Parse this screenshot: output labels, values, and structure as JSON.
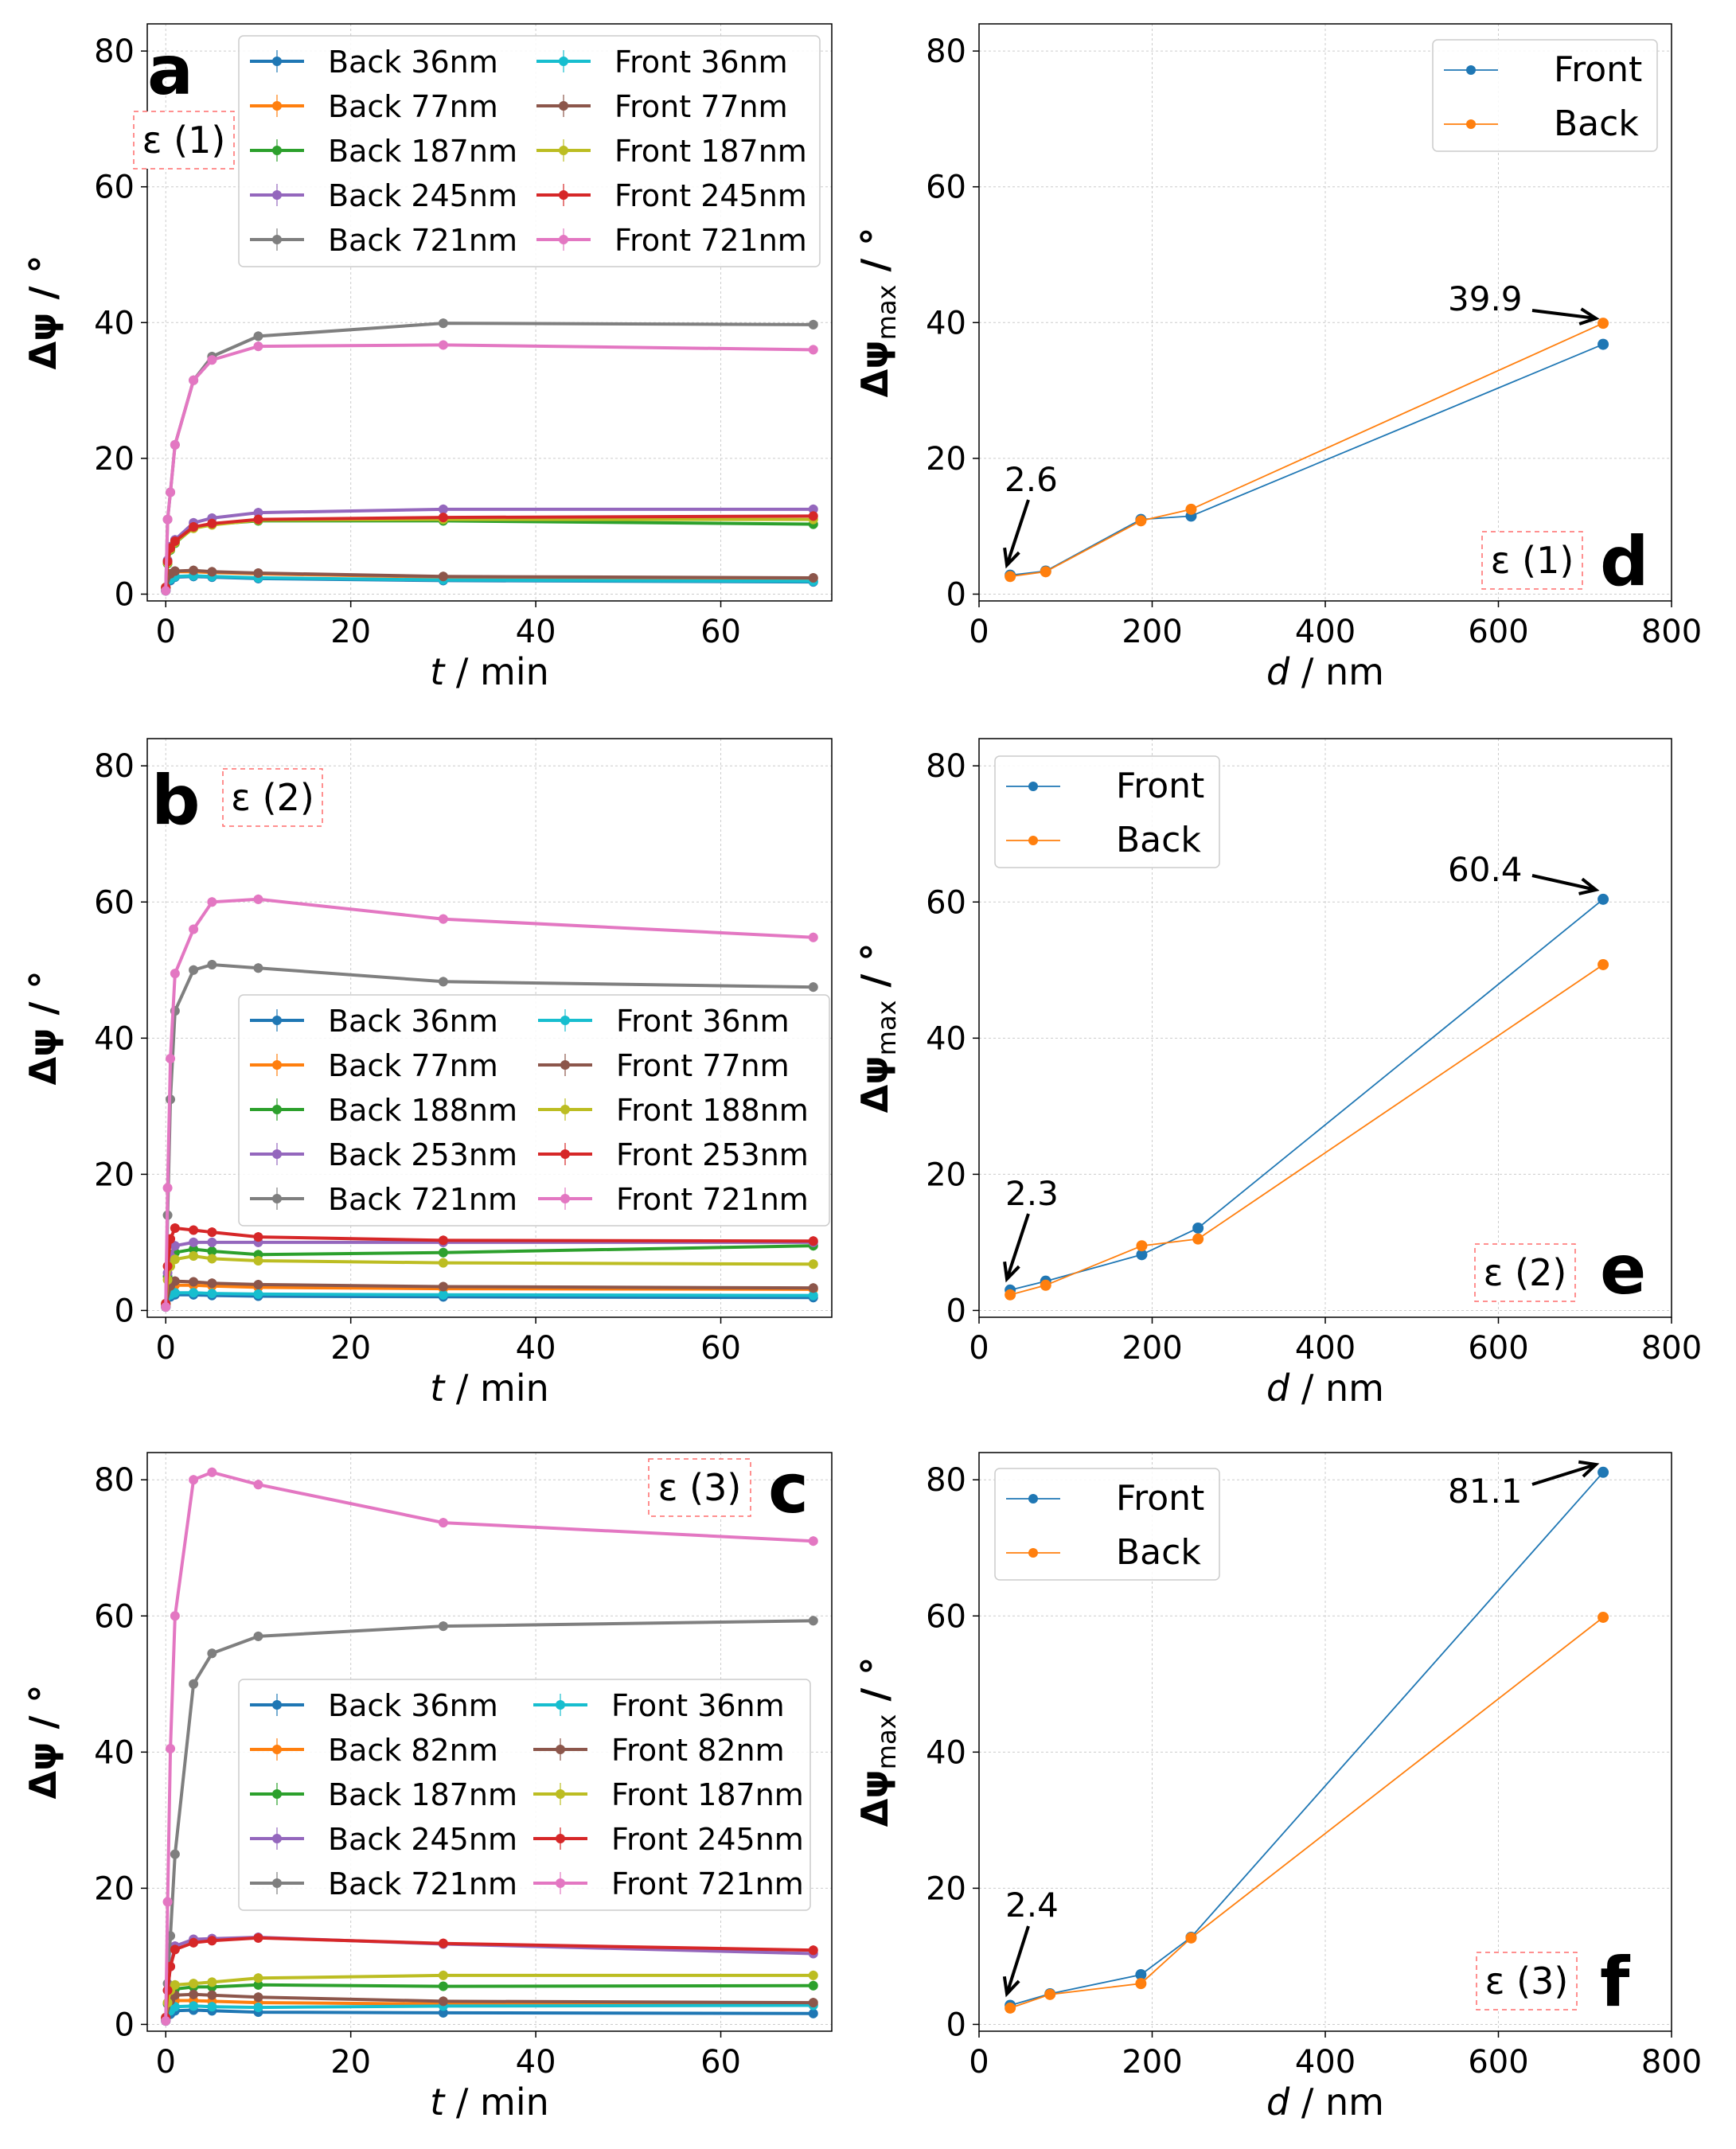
{
  "chart_data": [
    {
      "id": "a",
      "type": "line",
      "panel_letter": "a",
      "tag": "ε (1)",
      "xlabel_italic": "t",
      "xlabel_rest": " / min",
      "ylabel": "Δψ / °",
      "xlim": [
        -2,
        72
      ],
      "ylim": [
        -1,
        84
      ],
      "xticks": [
        0,
        20,
        40,
        60
      ],
      "yticks": [
        0,
        20,
        40,
        60,
        80
      ],
      "legend_position": "top-right",
      "series": [
        {
          "name": "Back 36nm",
          "color": "#1f77b4",
          "x": [
            0,
            0.5,
            1,
            3,
            5,
            10,
            30,
            70
          ],
          "y": [
            0.5,
            2.0,
            2.5,
            2.6,
            2.5,
            2.3,
            2.0,
            1.8
          ]
        },
        {
          "name": "Back 77nm",
          "color": "#ff7f0e",
          "x": [
            0,
            0.5,
            1,
            3,
            5,
            10,
            30,
            70
          ],
          "y": [
            0.8,
            2.8,
            3.3,
            3.3,
            3.2,
            3.0,
            2.5,
            2.3
          ]
        },
        {
          "name": "Back 187nm",
          "color": "#2ca02c",
          "x": [
            0,
            0.2,
            0.5,
            1,
            3,
            5,
            10,
            30,
            70
          ],
          "y": [
            1.0,
            4.5,
            6.5,
            7.5,
            9.8,
            10.3,
            10.8,
            10.8,
            10.3
          ]
        },
        {
          "name": "Back 245nm",
          "color": "#9467bd",
          "x": [
            0,
            0.2,
            0.5,
            1,
            3,
            5,
            10,
            30,
            70
          ],
          "y": [
            1.0,
            5.0,
            7.0,
            8.0,
            10.5,
            11.2,
            12.0,
            12.5,
            12.5
          ]
        },
        {
          "name": "Back 721nm",
          "color": "#7f7f7f",
          "x": [
            0,
            0.2,
            0.5,
            1,
            3,
            5,
            10,
            30,
            70
          ],
          "y": [
            0.5,
            11,
            15,
            22,
            31.5,
            35,
            38,
            39.9,
            39.7
          ]
        },
        {
          "name": "Front 36nm",
          "color": "#17becf",
          "x": [
            0,
            0.5,
            1,
            3,
            5,
            10,
            30,
            70
          ],
          "y": [
            0.5,
            2.2,
            2.6,
            2.7,
            2.6,
            2.4,
            2.1,
            1.9
          ]
        },
        {
          "name": "Front 77nm",
          "color": "#8c564b",
          "x": [
            0,
            0.5,
            1,
            3,
            5,
            10,
            30,
            70
          ],
          "y": [
            0.8,
            3.0,
            3.4,
            3.5,
            3.3,
            3.1,
            2.6,
            2.4
          ]
        },
        {
          "name": "Front 187nm",
          "color": "#bcbd22",
          "x": [
            0,
            0.2,
            0.5,
            1,
            3,
            5,
            10,
            30,
            70
          ],
          "y": [
            1.0,
            4.6,
            6.6,
            7.6,
            9.7,
            10.2,
            10.9,
            11.0,
            11.0
          ]
        },
        {
          "name": "Front 245nm",
          "color": "#d62728",
          "x": [
            0,
            0.2,
            0.5,
            1,
            3,
            5,
            10,
            30,
            70
          ],
          "y": [
            1.0,
            4.8,
            6.8,
            7.8,
            9.9,
            10.4,
            11.0,
            11.3,
            11.5
          ]
        },
        {
          "name": "Front 721nm",
          "color": "#e377c2",
          "x": [
            0,
            0.2,
            0.5,
            1,
            3,
            5,
            10,
            30,
            70
          ],
          "y": [
            0.5,
            11,
            15,
            22,
            31.5,
            34.5,
            36.5,
            36.7,
            36.0
          ]
        }
      ]
    },
    {
      "id": "b",
      "type": "line",
      "panel_letter": "b",
      "tag": "ε (2)",
      "xlabel_italic": "t",
      "xlabel_rest": " / min",
      "ylabel": "Δψ / °",
      "xlim": [
        -2,
        72
      ],
      "ylim": [
        -1,
        84
      ],
      "xticks": [
        0,
        20,
        40,
        60
      ],
      "yticks": [
        0,
        20,
        40,
        60,
        80
      ],
      "legend_position": "center-right",
      "series": [
        {
          "name": "Back 36nm",
          "color": "#1f77b4",
          "x": [
            0,
            0.5,
            1,
            3,
            5,
            10,
            30,
            70
          ],
          "y": [
            0.5,
            2.0,
            2.3,
            2.3,
            2.2,
            2.1,
            2.0,
            1.9
          ]
        },
        {
          "name": "Back 77nm",
          "color": "#ff7f0e",
          "x": [
            0,
            0.5,
            1,
            3,
            5,
            10,
            30,
            70
          ],
          "y": [
            0.8,
            3.0,
            3.7,
            3.7,
            3.6,
            3.4,
            3.2,
            3.1
          ]
        },
        {
          "name": "Back 188nm",
          "color": "#2ca02c",
          "x": [
            0,
            0.2,
            0.5,
            1,
            3,
            5,
            10,
            30,
            70
          ],
          "y": [
            1.0,
            5.0,
            7.5,
            8.5,
            9.0,
            8.7,
            8.2,
            8.5,
            9.5
          ]
        },
        {
          "name": "Back 253nm",
          "color": "#9467bd",
          "x": [
            0,
            0.2,
            0.5,
            1,
            3,
            5,
            10,
            30,
            70
          ],
          "y": [
            1.0,
            5.5,
            8.0,
            9.5,
            10.0,
            10.0,
            10.0,
            10.0,
            10.0
          ]
        },
        {
          "name": "Back 721nm",
          "color": "#7f7f7f",
          "x": [
            0,
            0.2,
            0.5,
            1,
            3,
            5,
            10,
            30,
            70
          ],
          "y": [
            0.5,
            14,
            31,
            44,
            50,
            50.8,
            50.3,
            48.3,
            47.5
          ]
        },
        {
          "name": "Front 36nm",
          "color": "#17becf",
          "x": [
            0,
            0.5,
            1,
            3,
            5,
            10,
            30,
            70
          ],
          "y": [
            0.5,
            2.3,
            2.6,
            2.6,
            2.5,
            2.4,
            2.3,
            2.2
          ]
        },
        {
          "name": "Front 77nm",
          "color": "#8c564b",
          "x": [
            0,
            0.5,
            1,
            3,
            5,
            10,
            30,
            70
          ],
          "y": [
            0.8,
            3.6,
            4.3,
            4.2,
            4.0,
            3.8,
            3.5,
            3.3
          ]
        },
        {
          "name": "Front 188nm",
          "color": "#bcbd22",
          "x": [
            0,
            0.2,
            0.5,
            1,
            3,
            5,
            10,
            30,
            70
          ],
          "y": [
            1.0,
            4.5,
            6.5,
            7.5,
            8.0,
            7.6,
            7.3,
            7.0,
            6.8
          ]
        },
        {
          "name": "Front 253nm",
          "color": "#d62728",
          "x": [
            0,
            0.2,
            0.5,
            1,
            3,
            5,
            10,
            30,
            70
          ],
          "y": [
            1.0,
            6.5,
            10.5,
            12.1,
            11.8,
            11.5,
            10.8,
            10.3,
            10.2
          ]
        },
        {
          "name": "Front 721nm",
          "color": "#e377c2",
          "x": [
            0,
            0.2,
            0.5,
            1,
            3,
            5,
            10,
            30,
            70
          ],
          "y": [
            0.5,
            18,
            37,
            49.5,
            56,
            60,
            60.4,
            57.5,
            54.8
          ]
        }
      ]
    },
    {
      "id": "c",
      "type": "line",
      "panel_letter": "c",
      "tag": "ε (3)",
      "xlabel_italic": "t",
      "xlabel_rest": " / min",
      "ylabel": "Δψ / °",
      "xlim": [
        -2,
        72
      ],
      "ylim": [
        -1,
        84
      ],
      "xticks": [
        0,
        20,
        40,
        60
      ],
      "yticks": [
        0,
        20,
        40,
        60,
        80
      ],
      "legend_position": "center-right",
      "series": [
        {
          "name": "Back 36nm",
          "color": "#1f77b4",
          "x": [
            0,
            0.5,
            1,
            3,
            5,
            10,
            30,
            70
          ],
          "y": [
            0.5,
            1.5,
            2.0,
            2.1,
            2.0,
            1.8,
            1.7,
            1.6
          ]
        },
        {
          "name": "Back 82nm",
          "color": "#ff7f0e",
          "x": [
            0,
            0.5,
            1,
            3,
            5,
            10,
            30,
            70
          ],
          "y": [
            0.8,
            3.0,
            3.5,
            3.5,
            3.4,
            3.2,
            3.0,
            2.9
          ]
        },
        {
          "name": "Back 187nm",
          "color": "#2ca02c",
          "x": [
            0,
            0.2,
            0.5,
            1,
            3,
            5,
            10,
            30,
            70
          ],
          "y": [
            1.0,
            3.0,
            4.5,
            5.2,
            5.5,
            5.5,
            5.8,
            5.6,
            5.7
          ]
        },
        {
          "name": "Back 245nm",
          "color": "#9467bd",
          "x": [
            0,
            0.2,
            0.5,
            1,
            3,
            5,
            10,
            30,
            70
          ],
          "y": [
            1.0,
            5.0,
            8.5,
            11.5,
            12.5,
            12.6,
            12.8,
            11.8,
            10.4
          ]
        },
        {
          "name": "Back 721nm",
          "color": "#7f7f7f",
          "x": [
            0,
            0.2,
            0.5,
            1,
            3,
            5,
            10,
            30,
            70
          ],
          "y": [
            0.5,
            6,
            13,
            25,
            50,
            54.5,
            57,
            58.5,
            59.3
          ]
        },
        {
          "name": "Front 36nm",
          "color": "#17becf",
          "x": [
            0,
            0.5,
            1,
            3,
            5,
            10,
            30,
            70
          ],
          "y": [
            0.5,
            2.0,
            2.6,
            2.7,
            2.6,
            2.5,
            2.7,
            2.8
          ]
        },
        {
          "name": "Front 82nm",
          "color": "#8c564b",
          "x": [
            0,
            0.5,
            1,
            3,
            5,
            10,
            30,
            70
          ],
          "y": [
            0.8,
            3.5,
            4.3,
            4.4,
            4.3,
            4.0,
            3.4,
            3.2
          ]
        },
        {
          "name": "Front 187nm",
          "color": "#bcbd22",
          "x": [
            0,
            0.2,
            0.5,
            1,
            3,
            5,
            10,
            30,
            70
          ],
          "y": [
            1.0,
            3.2,
            5.0,
            5.8,
            6.0,
            6.2,
            6.8,
            7.2,
            7.2
          ]
        },
        {
          "name": "Front 245nm",
          "color": "#d62728",
          "x": [
            0,
            0.2,
            0.5,
            1,
            3,
            5,
            10,
            30,
            70
          ],
          "y": [
            1.0,
            5.0,
            8.5,
            11.0,
            12.0,
            12.3,
            12.7,
            11.9,
            10.9
          ]
        },
        {
          "name": "Front 721nm",
          "color": "#e377c2",
          "x": [
            0,
            0.2,
            0.5,
            1,
            3,
            5,
            10,
            30,
            70
          ],
          "y": [
            0.5,
            18,
            40.5,
            60,
            80,
            81.1,
            79.3,
            73.7,
            71.0
          ]
        }
      ]
    },
    {
      "id": "d",
      "type": "line",
      "panel_letter": "d",
      "tag": "ε (1)",
      "xlabel_italic": "d",
      "xlabel_rest": " / nm",
      "ylabel_main": "Δψ",
      "ylabel_sub": "max",
      "ylabel_rest": " / °",
      "xlim": [
        0,
        800
      ],
      "ylim": [
        -1,
        84
      ],
      "xticks": [
        0,
        200,
        400,
        600,
        800
      ],
      "yticks": [
        0,
        20,
        40,
        60,
        80
      ],
      "legend_position": "top-right",
      "series": [
        {
          "name": "Front",
          "color": "#1f77b4",
          "x": [
            36,
            77,
            187,
            245,
            721
          ],
          "y": [
            2.8,
            3.4,
            11.0,
            11.5,
            36.8
          ]
        },
        {
          "name": "Back",
          "color": "#ff7f0e",
          "x": [
            36,
            77,
            187,
            245,
            721
          ],
          "y": [
            2.6,
            3.3,
            10.8,
            12.5,
            39.9
          ]
        }
      ],
      "annotations": [
        {
          "text": "2.6",
          "x": 36,
          "y": 2.6
        },
        {
          "text": "39.9",
          "x": 721,
          "y": 39.9
        }
      ]
    },
    {
      "id": "e",
      "type": "line",
      "panel_letter": "e",
      "tag": "ε (2)",
      "xlabel_italic": "d",
      "xlabel_rest": " / nm",
      "ylabel_main": "Δψ",
      "ylabel_sub": "max",
      "ylabel_rest": " / °",
      "xlim": [
        0,
        800
      ],
      "ylim": [
        -1,
        84
      ],
      "xticks": [
        0,
        200,
        400,
        600,
        800
      ],
      "yticks": [
        0,
        20,
        40,
        60,
        80
      ],
      "legend_position": "top-left",
      "series": [
        {
          "name": "Front",
          "color": "#1f77b4",
          "x": [
            36,
            77,
            188,
            253,
            721
          ],
          "y": [
            3.0,
            4.3,
            8.2,
            12.1,
            60.4
          ]
        },
        {
          "name": "Back",
          "color": "#ff7f0e",
          "x": [
            36,
            77,
            188,
            253,
            721
          ],
          "y": [
            2.3,
            3.7,
            9.5,
            10.5,
            50.8
          ]
        }
      ],
      "annotations": [
        {
          "text": "2.3",
          "x": 36,
          "y": 2.3
        },
        {
          "text": "60.4",
          "x": 721,
          "y": 60.4
        }
      ]
    },
    {
      "id": "f",
      "type": "line",
      "panel_letter": "f",
      "tag": "ε (3)",
      "xlabel_italic": "d",
      "xlabel_rest": " / nm",
      "ylabel_main": "Δψ",
      "ylabel_sub": "max",
      "ylabel_rest": " / °",
      "xlim": [
        0,
        800
      ],
      "ylim": [
        -1,
        84
      ],
      "xticks": [
        0,
        200,
        400,
        600,
        800
      ],
      "yticks": [
        0,
        20,
        40,
        60,
        80
      ],
      "legend_position": "top-left",
      "series": [
        {
          "name": "Front",
          "color": "#1f77b4",
          "x": [
            36,
            82,
            187,
            245,
            721
          ],
          "y": [
            2.8,
            4.5,
            7.3,
            12.8,
            81.1
          ]
        },
        {
          "name": "Back",
          "color": "#ff7f0e",
          "x": [
            36,
            82,
            187,
            245,
            721
          ],
          "y": [
            2.4,
            4.4,
            6.0,
            12.7,
            59.8
          ]
        }
      ],
      "annotations": [
        {
          "text": "2.4",
          "x": 36,
          "y": 2.4
        },
        {
          "text": "81.1",
          "x": 721,
          "y": 81.1
        }
      ]
    }
  ]
}
